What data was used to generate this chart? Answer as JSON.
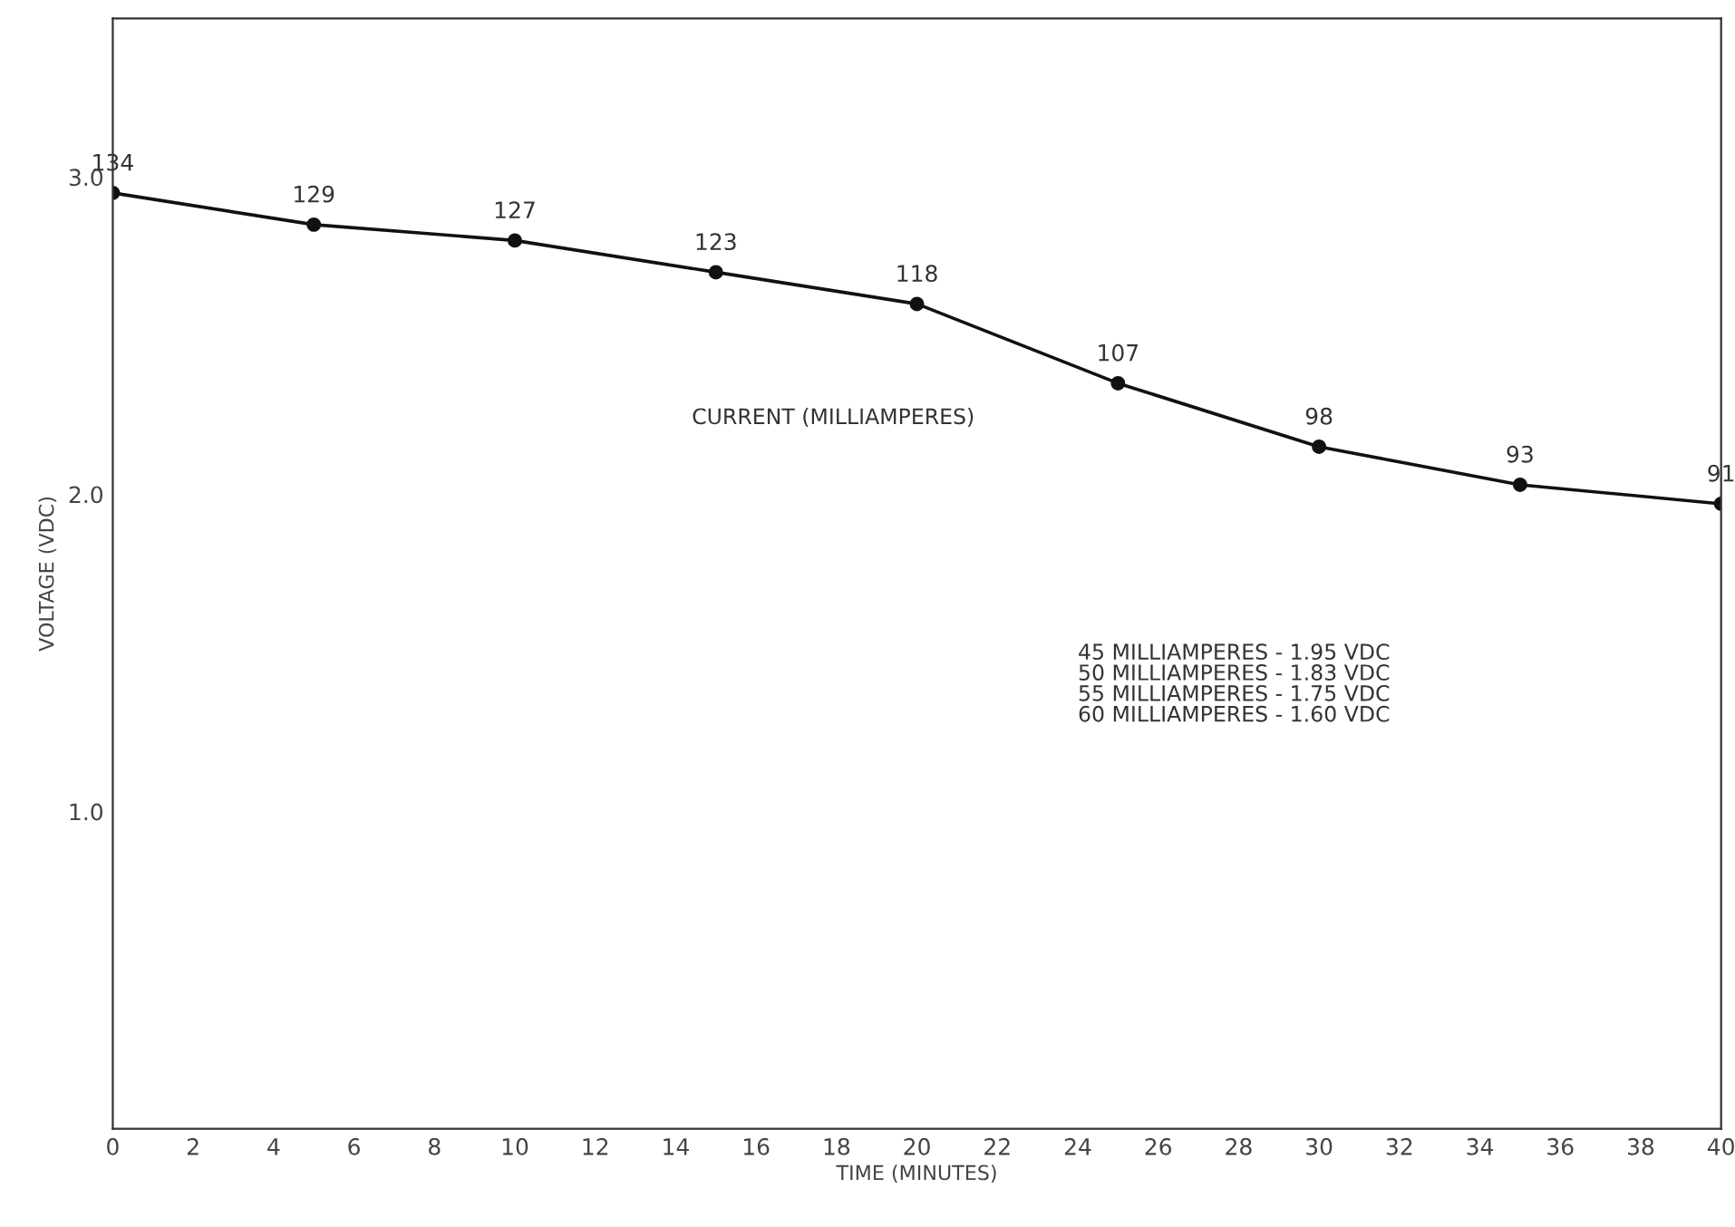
{
  "chart_data": {
    "type": "line",
    "xlabel": "TIME (MINUTES)",
    "ylabel": "VOLTAGE (VDC)",
    "x": [
      0,
      5,
      10,
      15,
      20,
      25,
      30,
      35,
      40
    ],
    "series": [
      {
        "color": "#111111",
        "values": [
          2.95,
          2.85,
          2.8,
          2.7,
          2.6,
          2.35,
          2.15,
          2.03,
          1.97
        ]
      }
    ],
    "xlim": [
      0,
      40
    ],
    "xticks": [
      0,
      2,
      4,
      6,
      8,
      10,
      12,
      14,
      16,
      18,
      20,
      22,
      24,
      26,
      28,
      30,
      32,
      34,
      36,
      38,
      40
    ],
    "ylim": [
      0,
      3.5
    ],
    "yticks": [
      {
        "value": 1,
        "label": "1.0"
      },
      {
        "value": 2,
        "label": "2.0"
      },
      {
        "value": 3,
        "label": "3.0"
      }
    ],
    "marker": "circle",
    "line_style": "solid",
    "grid": false,
    "legend": false,
    "annotations": [
      {
        "text": "134",
        "x": 0,
        "y": 2.95
      },
      {
        "text": "129",
        "x": 5,
        "y": 2.85
      },
      {
        "text": "127",
        "x": 10,
        "y": 2.8
      },
      {
        "text": "123",
        "x": 15,
        "y": 2.7
      },
      {
        "text": "118",
        "x": 20,
        "y": 2.6
      },
      {
        "text": "107",
        "x": 25,
        "y": 2.35
      },
      {
        "text": "98",
        "x": 30,
        "y": 2.15
      },
      {
        "text": "93",
        "x": 35,
        "y": 2.03
      },
      {
        "text": "91",
        "x": 40,
        "y": 1.97
      },
      "CURRENT (MILLIAMPERES)",
      "45 MILLIAMPERES - 1.95 VDC\n50 MILLIAMPERES - 1.83 VDC\n55 MILLIAMPERES - 1.75 VDC\n60 MILLIAMPERES - 1.60 VDC"
    ]
  }
}
